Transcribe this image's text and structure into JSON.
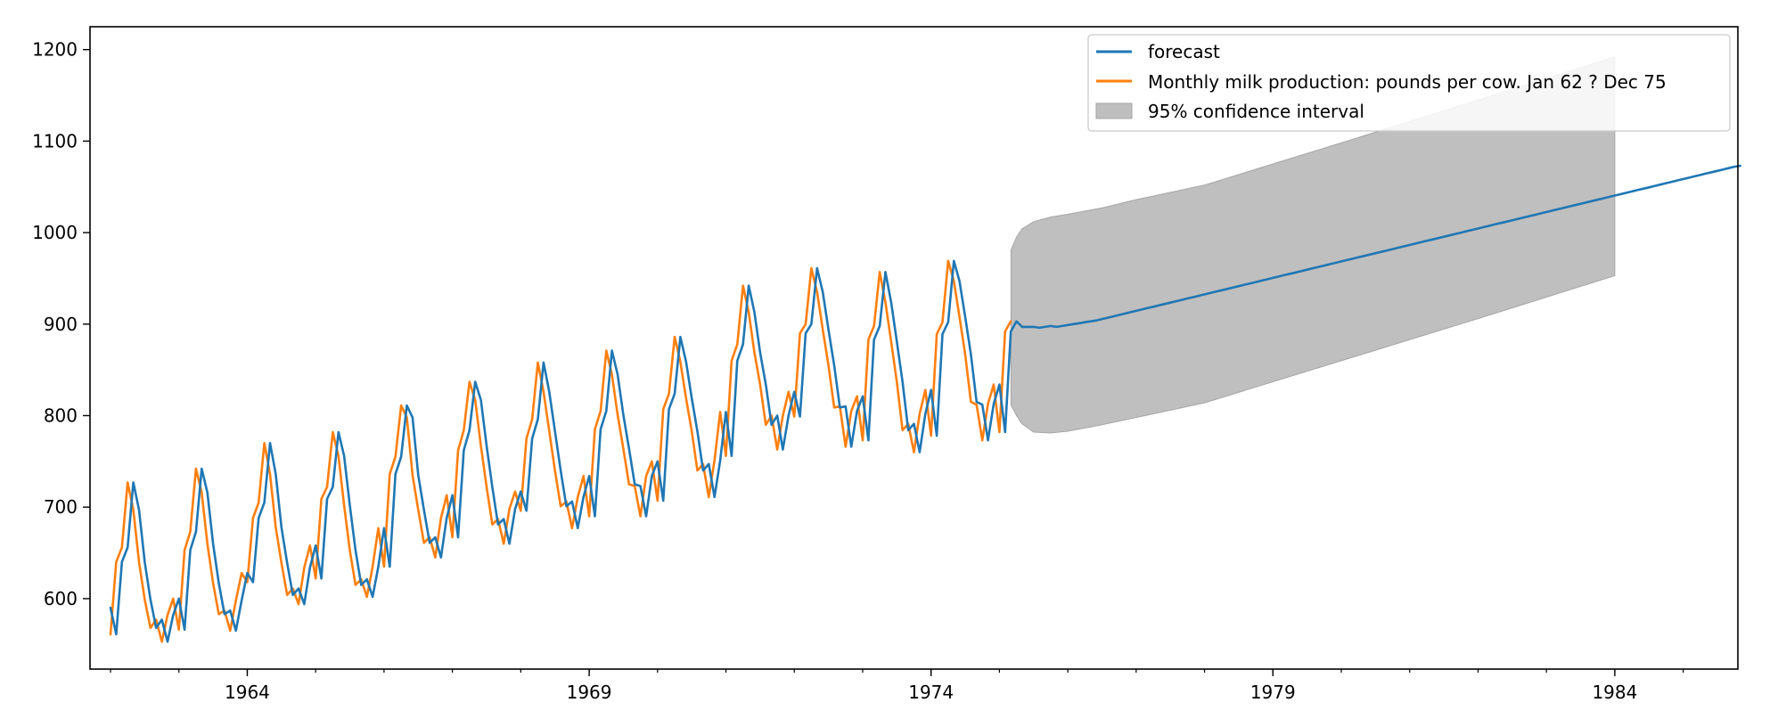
{
  "chart_data": {
    "type": "line",
    "x_unit": "year",
    "xlim": [
      1961.7,
      1985.8
    ],
    "ylim": [
      523,
      1225
    ],
    "x_ticks": [
      {
        "value": 1964,
        "label": "1964"
      },
      {
        "value": 1969,
        "label": "1969"
      },
      {
        "value": 1974,
        "label": "1974"
      },
      {
        "value": 1979,
        "label": "1979"
      },
      {
        "value": 1984,
        "label": "1984"
      }
    ],
    "y_ticks": [
      {
        "value": 600,
        "label": "600"
      },
      {
        "value": 700,
        "label": "700"
      },
      {
        "value": 800,
        "label": "800"
      },
      {
        "value": 900,
        "label": "900"
      },
      {
        "value": 1000,
        "label": "1000"
      },
      {
        "value": 1100,
        "label": "1100"
      },
      {
        "value": 1200,
        "label": "1200"
      }
    ],
    "grid": false,
    "legend_position": "top-right",
    "series": [
      {
        "name": "forecast",
        "color": "#1f77b4",
        "x_start": 1962.0,
        "x_step": 0.0833333,
        "values": [
          590,
          561,
          640,
          656,
          727,
          697,
          640,
          599,
          568,
          577,
          553,
          582,
          600,
          566,
          653,
          673,
          742,
          716,
          660,
          617,
          583,
          587,
          565,
          598,
          628,
          618,
          688,
          705,
          770,
          736,
          678,
          639,
          604,
          611,
          594,
          634,
          658,
          622,
          709,
          722,
          782,
          756,
          702,
          653,
          615,
          621,
          602,
          635,
          677,
          635,
          736,
          755,
          811,
          798,
          735,
          697,
          661,
          667,
          645,
          688,
          713,
          667,
          762,
          784,
          837,
          817,
          767,
          722,
          681,
          687,
          660,
          698,
          717,
          696,
          775,
          796,
          858,
          826,
          783,
          740,
          701,
          706,
          677,
          711,
          734,
          690,
          785,
          805,
          871,
          845,
          801,
          764,
          725,
          723,
          690,
          734,
          750,
          707,
          807,
          824,
          886,
          859,
          819,
          783,
          740,
          747,
          711,
          751,
          804,
          756,
          860,
          878,
          942,
          913,
          869,
          834,
          790,
          800,
          763,
          800,
          826,
          799,
          890,
          900,
          961,
          935,
          894,
          855,
          809,
          810,
          766,
          805,
          821,
          773,
          883,
          898,
          957,
          924,
          881,
          837,
          784,
          791,
          760,
          802,
          828,
          778,
          889,
          902,
          969,
          947,
          908,
          867,
          815,
          812,
          773,
          813,
          834,
          782,
          892,
          903,
          897,
          897,
          897,
          896,
          897,
          898,
          897,
          898,
          899,
          900,
          901,
          902,
          903,
          904,
          905.5,
          907,
          908.5,
          910,
          911.5,
          913,
          914.5,
          916,
          917.5,
          919,
          920.5,
          922,
          923.5,
          925,
          926.5,
          928,
          929.5,
          931,
          932.5,
          934,
          935.5,
          937,
          938.5,
          940,
          941.5,
          943,
          944.5,
          946,
          947.5,
          949,
          950.5,
          952,
          953.5,
          955,
          956.5,
          958,
          959.5,
          961,
          962.5,
          964,
          965.5,
          967,
          968.5,
          970,
          971.5,
          973,
          974.5,
          976,
          977.5,
          979,
          980.5,
          982,
          983.5,
          985,
          986.5,
          988,
          989.5,
          991,
          992.5,
          994,
          995.5,
          997,
          998.5,
          1000,
          1001.5,
          1003,
          1004.5,
          1006,
          1007.5,
          1009,
          1010.5,
          1012,
          1013.5,
          1015,
          1016.5,
          1018,
          1019.5,
          1021,
          1022.5,
          1024,
          1025.5,
          1027,
          1028.5,
          1030,
          1031.5,
          1033,
          1034.5,
          1036,
          1037.5,
          1039,
          1040.5,
          1042,
          1043.5,
          1045,
          1046.5,
          1048,
          1049.5,
          1051,
          1052.5,
          1054,
          1055.5,
          1057,
          1058.5,
          1060,
          1061.5,
          1063,
          1064.5,
          1066,
          1067.5,
          1069,
          1070.5,
          1072,
          1073
        ]
      },
      {
        "name": "Monthly milk production: pounds per cow. Jan 62 ? Dec 75",
        "color": "#ff7f0e",
        "x_start": 1962.0,
        "x_step": 0.0833333,
        "values": [
          561,
          640,
          656,
          727,
          697,
          640,
          599,
          568,
          577,
          553,
          582,
          600,
          566,
          653,
          673,
          742,
          716,
          660,
          617,
          583,
          587,
          565,
          598,
          628,
          618,
          688,
          705,
          770,
          736,
          678,
          639,
          604,
          611,
          594,
          634,
          658,
          622,
          709,
          722,
          782,
          756,
          702,
          653,
          615,
          621,
          602,
          635,
          677,
          635,
          736,
          755,
          811,
          798,
          735,
          697,
          661,
          667,
          645,
          688,
          713,
          667,
          762,
          784,
          837,
          817,
          767,
          722,
          681,
          687,
          660,
          698,
          717,
          696,
          775,
          796,
          858,
          826,
          783,
          740,
          701,
          706,
          677,
          711,
          734,
          690,
          785,
          805,
          871,
          845,
          801,
          764,
          725,
          723,
          690,
          734,
          750,
          707,
          807,
          824,
          886,
          859,
          819,
          783,
          740,
          747,
          711,
          751,
          804,
          756,
          860,
          878,
          942,
          913,
          869,
          834,
          790,
          800,
          763,
          800,
          826,
          799,
          890,
          900,
          961,
          935,
          894,
          855,
          809,
          810,
          766,
          805,
          821,
          773,
          883,
          898,
          957,
          924,
          881,
          837,
          784,
          791,
          760,
          802,
          828,
          778,
          889,
          902,
          969,
          947,
          908,
          867,
          815,
          812,
          773,
          813,
          834,
          782,
          892,
          903
        ]
      }
    ],
    "confidence_interval": {
      "name": "95% confidence interval",
      "color": "#bfbfbf",
      "edge_color": "#a6a6a6",
      "x": [
        1975.17,
        1975.25,
        1975.33,
        1975.5,
        1975.75,
        1976.0,
        1976.5,
        1977.0,
        1978.0,
        1980.0,
        1982.0,
        1984.0
      ],
      "lower": [
        812,
        800,
        791,
        782,
        781,
        783,
        790,
        798,
        814,
        860,
        906,
        953
      ],
      "upper": [
        981,
        995,
        1004,
        1012,
        1017,
        1020,
        1027,
        1036,
        1052,
        1098,
        1145,
        1192
      ]
    }
  }
}
